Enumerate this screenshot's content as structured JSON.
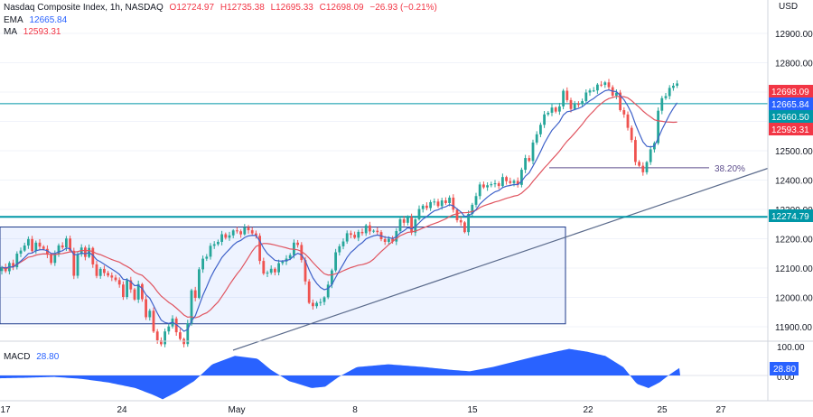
{
  "header": {
    "symbol": "Nasdaq Composite Index, 1h, NASDAQ",
    "open_label": "O",
    "open": "12724.97",
    "high_label": "H",
    "high": "12735.38",
    "low_label": "L",
    "low": "12695.33",
    "close_label": "C",
    "close": "12698.09",
    "change": "−26.93 (−0.21%)",
    "ema_label": "EMA",
    "ema_value": "12665.84",
    "ma_label": "MA",
    "ma_value": "12593.31"
  },
  "price_axis": {
    "currency": "USD",
    "ticks": [
      "12900.00",
      "12800.00",
      "12700.00",
      "12600.00",
      "12500.00",
      "12400.00",
      "12300.00",
      "12200.00",
      "12100.00",
      "12000.00",
      "11900.00"
    ]
  },
  "price_tags": [
    {
      "label": "12698.09",
      "value": 12698.09,
      "color": "#f23645"
    },
    {
      "label": "12665.84",
      "value": 12665.84,
      "color": "#2962ff"
    },
    {
      "label": "12660.50",
      "value": 12660.5,
      "color": "#0097a7"
    },
    {
      "label": "12593.31",
      "value": 12593.31,
      "color": "#f23645"
    },
    {
      "label": "12274.79",
      "value": 12274.79,
      "color": "#0097a7"
    }
  ],
  "macd": {
    "label": "MACD",
    "value": "28.80",
    "axis_ticks": [
      "100.00",
      "0.00"
    ],
    "tag": "28.80"
  },
  "annotations": {
    "fib_label": "38.20%"
  },
  "chart_data": {
    "type": "candlestick",
    "title": "Nasdaq Composite Index, 1h, NASDAQ",
    "x_ticks": [
      "17",
      "24",
      "May",
      "8",
      "15",
      "22",
      "25",
      "27"
    ],
    "y_range": [
      11800,
      12990
    ],
    "ohlc_path": [
      [
        0,
        12090
      ],
      [
        3,
        12110
      ],
      [
        6,
        12080
      ],
      [
        9,
        12130
      ],
      [
        12,
        12120
      ],
      [
        15,
        12095
      ],
      [
        18,
        12150
      ],
      [
        21,
        12140
      ],
      [
        24,
        12180
      ],
      [
        27,
        12165
      ],
      [
        30,
        12230
      ],
      [
        33,
        12170
      ],
      [
        36,
        12160
      ],
      [
        39,
        12175
      ],
      [
        42,
        12190
      ],
      [
        45,
        12175
      ],
      [
        48,
        12165
      ],
      [
        51,
        12150
      ],
      [
        54,
        12130
      ],
      [
        57,
        12125
      ],
      [
        60,
        12140
      ],
      [
        63,
        12150
      ],
      [
        66,
        12190
      ],
      [
        69,
        12175
      ],
      [
        72,
        12200
      ],
      [
        75,
        12185
      ],
      [
        78,
        12160
      ],
      [
        81,
        12060
      ],
      [
        84,
        12120
      ],
      [
        87,
        12150
      ],
      [
        90,
        12180
      ],
      [
        93,
        12140
      ],
      [
        96,
        12130
      ],
      [
        99,
        12170
      ],
      [
        102,
        12135
      ],
      [
        105,
        12080
      ],
      [
        108,
        12060
      ],
      [
        111,
        12100
      ],
      [
        114,
        12070
      ],
      [
        117,
        12110
      ],
      [
        120,
        12060
      ],
      [
        123,
        12085
      ],
      [
        126,
        12040
      ],
      [
        129,
        12070
      ],
      [
        132,
        12040
      ],
      [
        135,
        12000
      ],
      [
        138,
        12020
      ],
      [
        141,
        12060
      ],
      [
        144,
        12030
      ],
      [
        147,
        12010
      ],
      [
        150,
        11995
      ],
      [
        153,
        12040
      ],
      [
        156,
        12010
      ],
      [
        159,
        11980
      ],
      [
        162,
        11930
      ],
      [
        165,
        11960
      ],
      [
        168,
        11910
      ],
      [
        171,
        11880
      ],
      [
        174,
        11855
      ],
      [
        177,
        11830
      ],
      [
        180,
        11840
      ],
      [
        183,
        11900
      ],
      [
        186,
        11880
      ],
      [
        189,
        11940
      ],
      [
        192,
        11920
      ],
      [
        195,
        11890
      ],
      [
        198,
        11860
      ],
      [
        201,
        11840
      ],
      [
        204,
        11845
      ],
      [
        207,
        11895
      ],
      [
        210,
        11970
      ],
      [
        213,
        12040
      ],
      [
        216,
        12000
      ],
      [
        219,
        12080
      ],
      [
        222,
        12110
      ],
      [
        225,
        12130
      ],
      [
        228,
        12160
      ],
      [
        231,
        12110
      ],
      [
        234,
        12200
      ],
      [
        237,
        12180
      ],
      [
        240,
        12200
      ],
      [
        243,
        12190
      ],
      [
        246,
        12210
      ],
      [
        249,
        12200
      ],
      [
        252,
        12230
      ],
      [
        255,
        12205
      ],
      [
        258,
        12220
      ],
      [
        261,
        12240
      ],
      [
        264,
        12225
      ],
      [
        267,
        12210
      ],
      [
        270,
        12230
      ],
      [
        273,
        12250
      ],
      [
        276,
        12230
      ],
      [
        279,
        12210
      ],
      [
        282,
        12230
      ],
      [
        285,
        12190
      ],
      [
        288,
        12120
      ],
      [
        291,
        12060
      ],
      [
        294,
        12110
      ],
      [
        297,
        12080
      ],
      [
        300,
        12100
      ],
      [
        303,
        12070
      ],
      [
        306,
        12090
      ],
      [
        309,
        12130
      ],
      [
        312,
        12110
      ],
      [
        315,
        12140
      ],
      [
        318,
        12125
      ],
      [
        321,
        12150
      ],
      [
        324,
        12170
      ],
      [
        327,
        12190
      ],
      [
        330,
        12180
      ],
      [
        333,
        12150
      ],
      [
        336,
        12080
      ],
      [
        339,
        12030
      ],
      [
        342,
        11990
      ],
      [
        345,
        11960
      ],
      [
        348,
        11980
      ],
      [
        351,
        11975
      ],
      [
        354,
        11995
      ],
      [
        357,
        11985
      ],
      [
        360,
        12000
      ],
      [
        363,
        12040
      ],
      [
        366,
        12080
      ],
      [
        369,
        12120
      ],
      [
        372,
        12150
      ],
      [
        375,
        12170
      ],
      [
        378,
        12200
      ],
      [
        381,
        12190
      ],
      [
        384,
        12210
      ],
      [
        387,
        12230
      ],
      [
        390,
        12210
      ],
      [
        393,
        12200
      ],
      [
        396,
        12215
      ],
      [
        399,
        12230
      ],
      [
        402,
        12225
      ],
      [
        405,
        12240
      ],
      [
        408,
        12230
      ],
      [
        411,
        12220
      ],
      [
        414,
        12235
      ],
      [
        417,
        12220
      ],
      [
        420,
        12200
      ],
      [
        423,
        12205
      ],
      [
        426,
        12190
      ],
      [
        429,
        12200
      ],
      [
        432,
        12185
      ],
      [
        435,
        12200
      ],
      [
        438,
        12220
      ],
      [
        441,
        12230
      ],
      [
        444,
        12280
      ],
      [
        447,
        12260
      ],
      [
        450,
        12290
      ],
      [
        453,
        12240
      ],
      [
        456,
        12220
      ],
      [
        459,
        12260
      ],
      [
        462,
        12300
      ],
      [
        465,
        12290
      ],
      [
        468,
        12320
      ],
      [
        471,
        12300
      ],
      [
        474,
        12310
      ],
      [
        477,
        12320
      ],
      [
        480,
        12340
      ],
      [
        483,
        12320
      ],
      [
        486,
        12300
      ],
      [
        489,
        12330
      ],
      [
        492,
        12310
      ],
      [
        495,
        12350
      ],
      [
        498,
        12330
      ],
      [
        501,
        12310
      ],
      [
        504,
        12280
      ],
      [
        507,
        12260
      ],
      [
        510,
        12250
      ],
      [
        513,
        12220
      ],
      [
        516,
        12240
      ],
      [
        519,
        12290
      ],
      [
        522,
        12300
      ],
      [
        525,
        12340
      ],
      [
        528,
        12360
      ],
      [
        531,
        12380
      ],
      [
        534,
        12370
      ],
      [
        537,
        12380
      ],
      [
        540,
        12390
      ],
      [
        543,
        12370
      ],
      [
        546,
        12400
      ],
      [
        549,
        12390
      ],
      [
        552,
        12380
      ],
      [
        555,
        12410
      ],
      [
        558,
        12395
      ],
      [
        561,
        12405
      ],
      [
        564,
        12390
      ],
      [
        567,
        12380
      ],
      [
        570,
        12400
      ],
      [
        573,
        12390
      ],
      [
        576,
        12410
      ],
      [
        579,
        12450
      ],
      [
        582,
        12480
      ],
      [
        585,
        12460
      ],
      [
        588,
        12500
      ],
      [
        591,
        12530
      ],
      [
        594,
        12560
      ],
      [
        597,
        12580
      ],
      [
        600,
        12600
      ],
      [
        603,
        12620
      ],
      [
        606,
        12640
      ],
      [
        609,
        12630
      ],
      [
        612,
        12650
      ],
      [
        615,
        12630
      ],
      [
        618,
        12640
      ],
      [
        621,
        12680
      ],
      [
        624,
        12700
      ],
      [
        627,
        12680
      ],
      [
        630,
        12660
      ],
      [
        633,
        12640
      ],
      [
        636,
        12650
      ],
      [
        639,
        12670
      ],
      [
        642,
        12660
      ],
      [
        645,
        12670
      ],
      [
        648,
        12690
      ],
      [
        651,
        12700
      ],
      [
        654,
        12720
      ],
      [
        657,
        12700
      ],
      [
        660,
        12710
      ],
      [
        663,
        12740
      ],
      [
        666,
        12730
      ],
      [
        669,
        12720
      ],
      [
        672,
        12740
      ],
      [
        675,
        12710
      ],
      [
        678,
        12690
      ],
      [
        681,
        12700
      ],
      [
        684,
        12680
      ],
      [
        687,
        12640
      ],
      [
        690,
        12630
      ],
      [
        693,
        12600
      ],
      [
        696,
        12560
      ],
      [
        699,
        12550
      ],
      [
        702,
        12470
      ],
      [
        705,
        12440
      ],
      [
        708,
        12450
      ],
      [
        711,
        12430
      ],
      [
        714,
        12440
      ],
      [
        717,
        12460
      ],
      [
        720,
        12510
      ],
      [
        723,
        12500
      ],
      [
        726,
        12560
      ],
      [
        729,
        12640
      ],
      [
        732,
        12700
      ],
      [
        735,
        12650
      ],
      [
        738,
        12700
      ],
      [
        741,
        12710
      ],
      [
        744,
        12720
      ],
      [
        747,
        12740
      ],
      [
        750,
        12720
      ],
      [
        753,
        12698
      ]
    ],
    "ema_label": "EMA",
    "ema_last": 12665.84,
    "ma_label": "MA",
    "ma_last": 12593.31,
    "horizontal_levels": [
      12660.5,
      12274.79
    ],
    "fib_level": 12442,
    "fib_label": "38.20%",
    "consolidation_box": {
      "top": 12240,
      "bottom": 11910
    },
    "trendline": {
      "from": 11820,
      "to": 12440
    },
    "macd": {
      "label": "MACD",
      "last": 28.8,
      "axis": [
        100,
        0
      ],
      "histogram_path": [
        [
          0,
          -10
        ],
        [
          30,
          -8
        ],
        [
          60,
          -5
        ],
        [
          90,
          -12
        ],
        [
          120,
          -25
        ],
        [
          150,
          -45
        ],
        [
          170,
          -70
        ],
        [
          180,
          -85
        ],
        [
          195,
          -60
        ],
        [
          215,
          -20
        ],
        [
          235,
          40
        ],
        [
          260,
          70
        ],
        [
          285,
          60
        ],
        [
          300,
          20
        ],
        [
          320,
          -20
        ],
        [
          345,
          -45
        ],
        [
          360,
          -40
        ],
        [
          375,
          -5
        ],
        [
          395,
          30
        ],
        [
          430,
          40
        ],
        [
          470,
          30
        ],
        [
          500,
          20
        ],
        [
          520,
          15
        ],
        [
          545,
          30
        ],
        [
          570,
          50
        ],
        [
          595,
          70
        ],
        [
          615,
          85
        ],
        [
          630,
          95
        ],
        [
          650,
          85
        ],
        [
          670,
          70
        ],
        [
          690,
          30
        ],
        [
          705,
          -30
        ],
        [
          718,
          -45
        ],
        [
          730,
          -25
        ],
        [
          742,
          5
        ],
        [
          753,
          28.8
        ]
      ]
    }
  }
}
